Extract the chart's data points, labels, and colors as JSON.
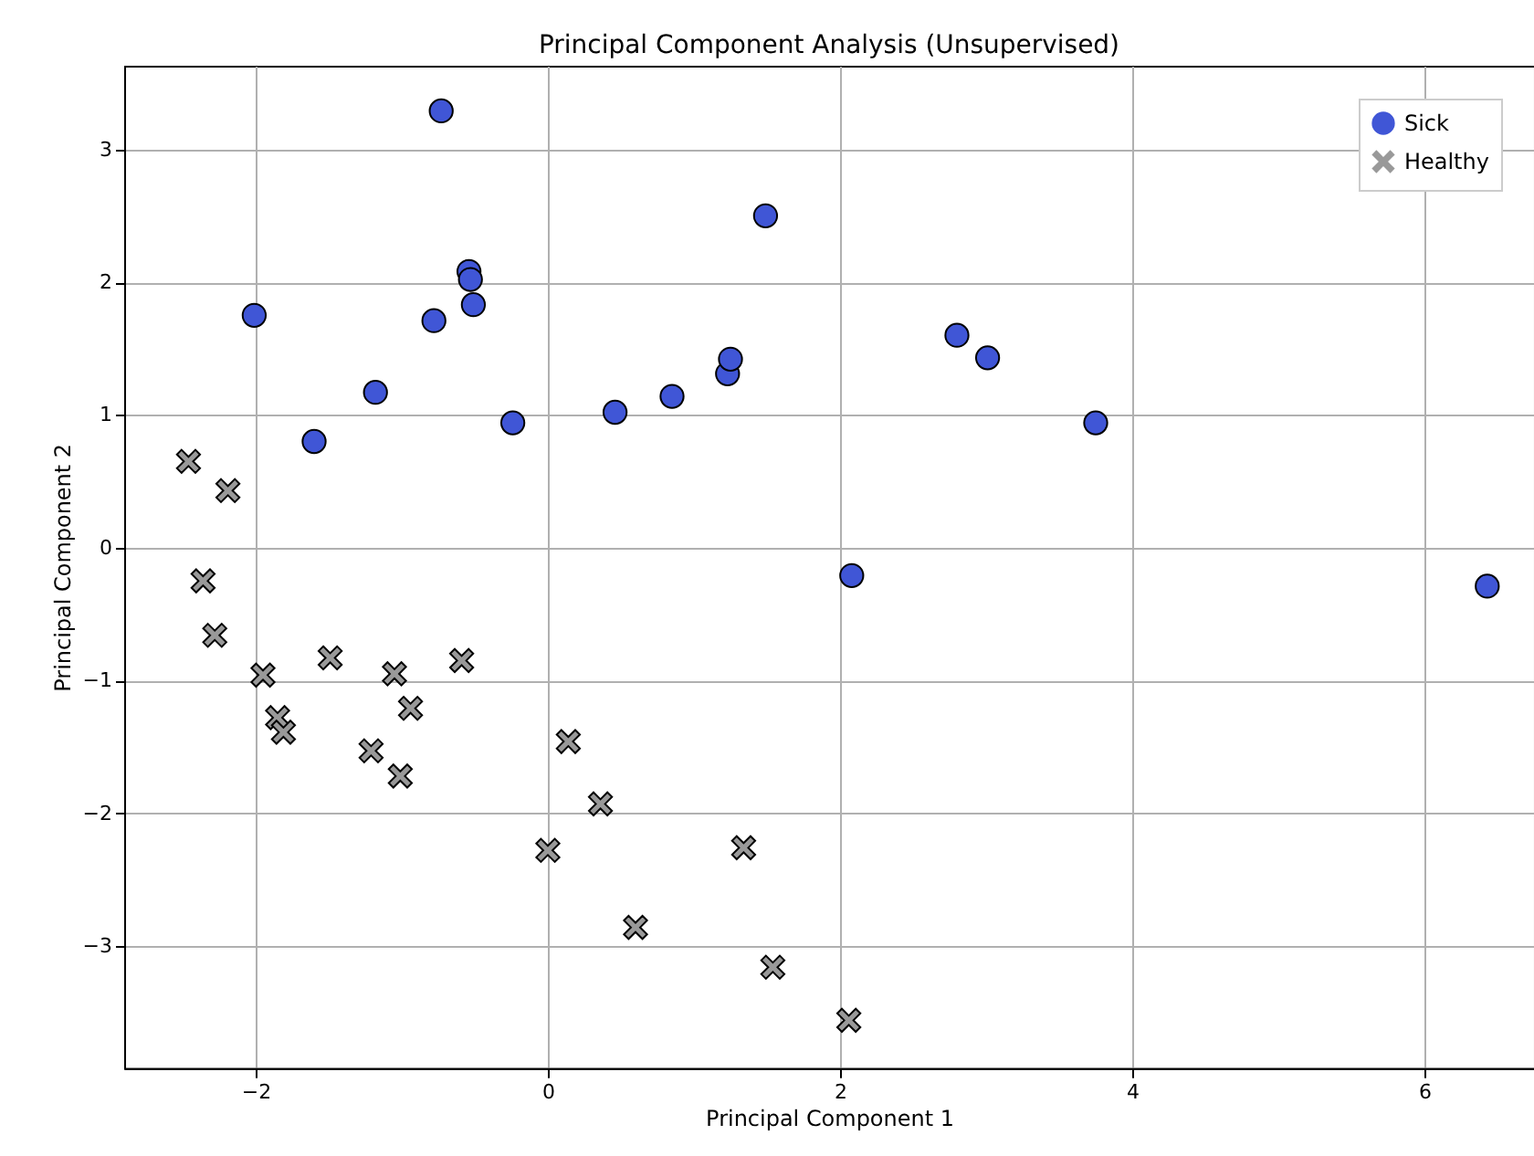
{
  "chart_data": {
    "type": "scatter",
    "title": "Principal Component Analysis (Unsupervised)",
    "xlabel": "Principal Component 1",
    "ylabel": "Principal Component 2",
    "xlim": [
      -2.9,
      6.75
    ],
    "ylim": [
      -3.92,
      3.63
    ],
    "xticks": [
      -2,
      0,
      2,
      4,
      6
    ],
    "yticks": [
      -3,
      -2,
      -1,
      0,
      1,
      2,
      3
    ],
    "grid": true,
    "legend": "top right",
    "series": [
      {
        "name": "Sick",
        "color": "#4056d6",
        "marker": "circle",
        "x": [
          -0.73,
          -2.01,
          -1.18,
          -1.6,
          -0.78,
          -0.54,
          -0.53,
          -0.51,
          -0.24,
          0.46,
          0.85,
          1.23,
          1.25,
          1.49,
          2.8,
          3.01,
          3.75,
          2.08,
          6.43
        ],
        "values": [
          3.29,
          1.75,
          1.17,
          0.8,
          1.71,
          2.08,
          2.02,
          1.83,
          0.94,
          1.02,
          1.14,
          1.31,
          1.42,
          2.5,
          1.6,
          1.43,
          0.94,
          -0.21,
          -0.29
        ]
      },
      {
        "name": "Healthy",
        "color": "#999999",
        "marker": "cross",
        "x": [
          -2.46,
          -2.19,
          -2.36,
          -2.28,
          -1.95,
          -1.49,
          -1.85,
          -1.81,
          -1.05,
          -0.94,
          -1.01,
          -1.21,
          -0.59,
          0.14,
          0.36,
          0.0,
          0.6,
          1.34,
          1.54,
          2.06
        ],
        "values": [
          0.65,
          0.43,
          -0.25,
          -0.66,
          -0.96,
          -0.83,
          -1.28,
          -1.39,
          -0.95,
          -1.21,
          -1.72,
          -1.53,
          -0.85,
          -1.46,
          -1.93,
          -2.28,
          -2.86,
          -2.26,
          -3.16,
          -3.56
        ]
      }
    ]
  }
}
